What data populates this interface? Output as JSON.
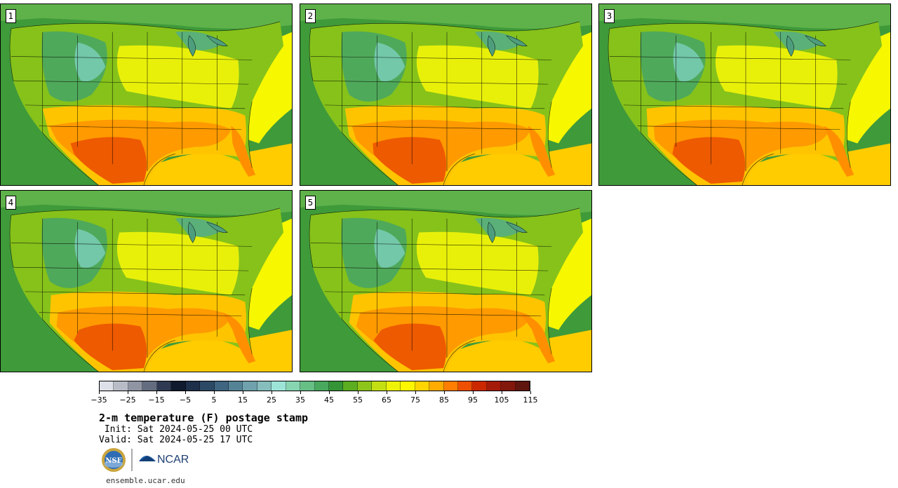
{
  "panels": [
    {
      "label": "1"
    },
    {
      "label": "2"
    },
    {
      "label": "3"
    },
    {
      "label": "4"
    },
    {
      "label": "5"
    }
  ],
  "colors": {
    "ocean_west": "#3f9a3a",
    "ocean_gulf": "#ffcc00",
    "ocean_atlantic": "#f7f700",
    "canada": "#5fb24a",
    "borders": "#000000"
  },
  "colorbar": {
    "colors": [
      "#dde0e8",
      "#b8bcc6",
      "#8f95a3",
      "#646d80",
      "#2f3a52",
      "#0f1a2e",
      "#1e2f4a",
      "#2c4966",
      "#3f6580",
      "#558396",
      "#6fa2ac",
      "#86bdbd",
      "#9de4d8",
      "#86d4b0",
      "#66bf85",
      "#48a85e",
      "#359436",
      "#5cad1f",
      "#8ec51b",
      "#c3df12",
      "#eef308",
      "#fff700",
      "#ffd500",
      "#ffab00",
      "#ff7d00",
      "#ee4f00",
      "#cc2800",
      "#a41b0a",
      "#82170c",
      "#5f160e"
    ],
    "tick_labels": [
      "−35",
      "−25",
      "−15",
      "−5",
      "5",
      "15",
      "25",
      "35",
      "45",
      "55",
      "65",
      "75",
      "85",
      "95",
      "105",
      "115"
    ]
  },
  "title": "2-m temperature (F) postage stamp",
  "init": " Init: Sat 2024-05-25 00 UTC",
  "valid": "Valid: Sat 2024-05-25 17 UTC",
  "logos": {
    "nsf": "NSF",
    "ncar": "NCAR"
  },
  "url": "ensemble.ucar.edu"
}
